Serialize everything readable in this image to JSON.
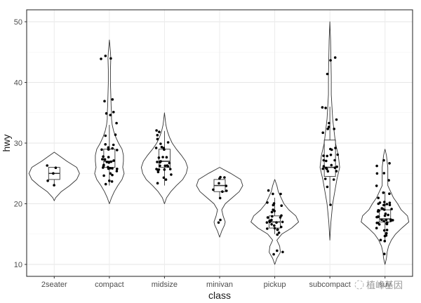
{
  "chart_data": {
    "type": "violin",
    "title": "",
    "xlabel": "class",
    "ylabel": "hwy",
    "ylim": [
      8,
      52
    ],
    "yticks": [
      10,
      20,
      30,
      40,
      50
    ],
    "grid": true,
    "theme": "bw",
    "categories": [
      "2seater",
      "compact",
      "midsize",
      "minivan",
      "pickup",
      "subcompact",
      "suv"
    ],
    "boxplots": [
      {
        "category": "2seater",
        "min": 23,
        "q1": 24,
        "median": 25,
        "q3": 26,
        "max": 26
      },
      {
        "category": "compact",
        "min": 23,
        "q1": 26,
        "median": 27,
        "q3": 29,
        "max": 33
      },
      {
        "category": "midsize",
        "min": 23,
        "q1": 26,
        "median": 27,
        "q3": 29,
        "max": 32
      },
      {
        "category": "minivan",
        "min": 21,
        "q1": 22,
        "median": 23,
        "q3": 24,
        "max": 24
      },
      {
        "category": "pickup",
        "min": 15,
        "q1": 16,
        "median": 17,
        "q3": 18,
        "max": 21
      },
      {
        "category": "subcompact",
        "min": 20,
        "q1": 24.5,
        "median": 26,
        "q3": 30.5,
        "max": 36
      },
      {
        "category": "suv",
        "min": 14,
        "q1": 17,
        "median": 17.5,
        "q3": 19,
        "max": 22
      }
    ],
    "violin_range": [
      {
        "category": "2seater",
        "min": 20.5,
        "max": 28.5
      },
      {
        "category": "compact",
        "min": 20,
        "max": 47
      },
      {
        "category": "midsize",
        "min": 20,
        "max": 35
      },
      {
        "category": "minivan",
        "min": 14.5,
        "max": 26
      },
      {
        "category": "pickup",
        "min": 10,
        "max": 24
      },
      {
        "category": "subcompact",
        "min": 14,
        "max": 50
      },
      {
        "category": "suv",
        "min": 10,
        "max": 29
      }
    ],
    "points": {
      "2seater": [
        23,
        24,
        25,
        26,
        26
      ],
      "compact": [
        23,
        24,
        24,
        25,
        25,
        25,
        25,
        26,
        26,
        26,
        26,
        26,
        26,
        26,
        26,
        27,
        27,
        27,
        27,
        27,
        27,
        28,
        28,
        29,
        29,
        29,
        29,
        29,
        29,
        30,
        30,
        31,
        31,
        33,
        35,
        35,
        35,
        37,
        37,
        44,
        44,
        44
      ],
      "midsize": [
        23,
        24,
        24,
        25,
        25,
        26,
        26,
        26,
        26,
        26,
        26,
        26,
        26,
        26,
        27,
        27,
        27,
        27,
        28,
        28,
        28,
        29,
        29,
        29,
        29,
        30,
        30,
        31,
        31,
        32,
        32
      ],
      "minivan": [
        17,
        17,
        21,
        22,
        22,
        22,
        23,
        23,
        24,
        24,
        24
      ],
      "pickup": [
        12,
        12,
        12,
        15,
        15,
        16,
        16,
        16,
        16,
        16,
        16,
        17,
        17,
        17,
        17,
        17,
        17,
        17,
        17,
        18,
        18,
        18,
        18,
        19,
        19,
        19,
        20,
        20,
        20,
        20,
        22,
        22,
        22
      ],
      "subcompact": [
        20,
        23,
        24,
        24,
        25,
        25,
        26,
        26,
        26,
        26,
        26,
        26,
        26,
        27,
        27,
        27,
        28,
        28,
        28,
        28,
        29,
        29,
        29,
        32,
        32,
        32,
        33,
        33,
        34,
        36,
        36,
        41,
        44,
        44
      ],
      "suv": [
        12,
        14,
        14,
        15,
        15,
        15,
        16,
        16,
        16,
        17,
        17,
        17,
        17,
        17,
        17,
        17,
        17,
        17,
        17,
        17,
        17,
        18,
        18,
        18,
        18,
        18,
        18,
        18,
        19,
        19,
        19,
        19,
        19,
        19,
        19,
        19,
        20,
        20,
        20,
        20,
        20,
        20,
        20,
        20,
        21,
        22,
        22,
        23,
        24,
        25,
        25,
        26,
        27,
        27
      ]
    }
  },
  "watermark": {
    "text": "植峰基因"
  }
}
